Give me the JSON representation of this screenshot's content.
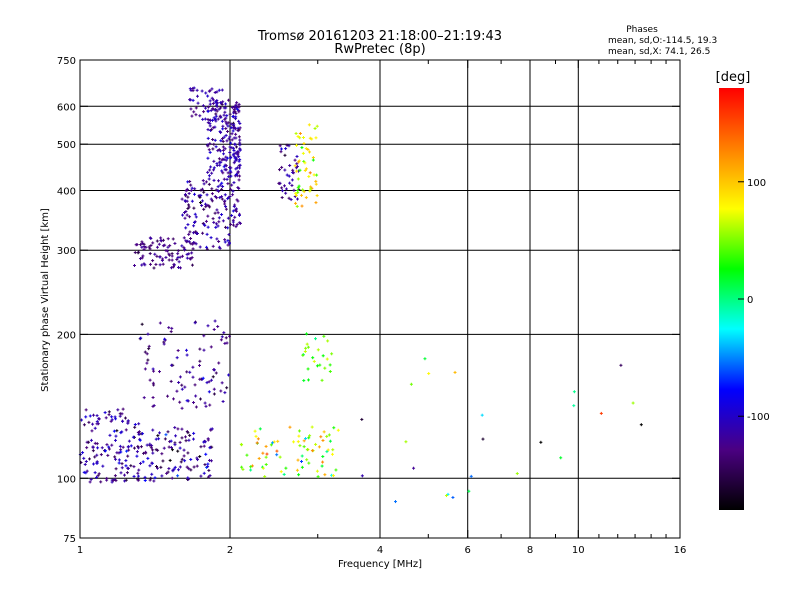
{
  "header": {
    "title": "Tromsø 20161203 21:18:00–21:19:43",
    "subtitle": "RwPretec (8p)",
    "phases_heading": "Phases",
    "phases_o": "mean, sd,O:-114.5, 19.3",
    "phases_x": "mean, sd,X:  74.1, 26.5"
  },
  "chart_data": {
    "type": "scatter",
    "xlabel": "Frequency [MHz]",
    "ylabel": "Stationary phase Virtual Height [km]",
    "x_scale": "log",
    "y_scale": "log",
    "xlim": [
      1,
      16
    ],
    "ylim": [
      75,
      750
    ],
    "x_ticks": [
      1,
      2,
      4,
      6,
      8,
      10,
      16
    ],
    "x_tick_labels": [
      "1",
      "2",
      "4",
      "6",
      "8",
      "10",
      "16"
    ],
    "x_gridlines": [
      2,
      4,
      6,
      8,
      10
    ],
    "x_minor_ticks": [
      3,
      5,
      7,
      9,
      11,
      12,
      13,
      14,
      15
    ],
    "y_ticks": [
      75,
      100,
      200,
      300,
      400,
      500,
      600,
      750
    ],
    "y_tick_labels": [
      "75",
      "100",
      "200",
      "300",
      "400",
      "500",
      "600",
      "750"
    ],
    "y_gridlines": [
      100,
      200,
      300,
      400,
      500,
      600
    ],
    "grid": true,
    "colorbar": {
      "unit": "[deg]",
      "min": -180,
      "max": 180,
      "ticks": [
        100,
        0,
        -100
      ],
      "tick_labels": [
        "100",
        "0",
        "-100"
      ],
      "colors": [
        "#000000",
        "#4b0082",
        "#0000ff",
        "#00ffff",
        "#00ff00",
        "#ffff00",
        "#ff8000",
        "#ff0000"
      ]
    },
    "clusters": [
      {
        "x_from": 1.0,
        "x_to": 1.32,
        "y_from": 98,
        "y_to": 140,
        "phase": -120,
        "phase_sd": 20,
        "count": 140
      },
      {
        "x_from": 1.3,
        "x_to": 1.85,
        "y_from": 98,
        "y_to": 128,
        "phase": -120,
        "phase_sd": 25,
        "count": 130
      },
      {
        "x_from": 1.3,
        "x_to": 2.0,
        "y_from": 140,
        "y_to": 215,
        "phase": -125,
        "phase_sd": 15,
        "count": 100
      },
      {
        "x_from": 1.28,
        "x_to": 1.7,
        "y_from": 275,
        "y_to": 320,
        "phase": -130,
        "phase_sd": 10,
        "count": 90
      },
      {
        "x_from": 1.6,
        "x_to": 2.0,
        "y_from": 300,
        "y_to": 420,
        "phase": -120,
        "phase_sd": 15,
        "count": 140
      },
      {
        "x_from": 1.8,
        "x_to": 2.1,
        "y_from": 420,
        "y_to": 620,
        "phase": -115,
        "phase_sd": 15,
        "count": 180
      },
      {
        "x_from": 1.65,
        "x_to": 1.95,
        "y_from": 560,
        "y_to": 660,
        "phase": -115,
        "phase_sd": 10,
        "count": 40
      },
      {
        "x_from": 2.0,
        "x_to": 2.1,
        "y_from": 330,
        "y_to": 600,
        "phase": -120,
        "phase_sd": 15,
        "count": 70
      },
      {
        "x_from": 2.5,
        "x_to": 2.75,
        "y_from": 380,
        "y_to": 500,
        "phase": -120,
        "phase_sd": 15,
        "count": 40
      },
      {
        "x_from": 2.7,
        "x_to": 3.0,
        "y_from": 370,
        "y_to": 560,
        "phase": 80,
        "phase_sd": 25,
        "count": 55
      },
      {
        "x_from": 2.1,
        "x_to": 3.3,
        "y_from": 100,
        "y_to": 128,
        "phase": 60,
        "phase_sd": 40,
        "count": 80
      },
      {
        "x_from": 2.8,
        "x_to": 3.2,
        "y_from": 160,
        "y_to": 205,
        "phase": 40,
        "phase_sd": 20,
        "count": 25
      },
      {
        "x_from": 3.5,
        "x_to": 14.0,
        "y_from": 85,
        "y_to": 180,
        "phase": -20,
        "phase_sd": 80,
        "count": 25
      }
    ]
  }
}
